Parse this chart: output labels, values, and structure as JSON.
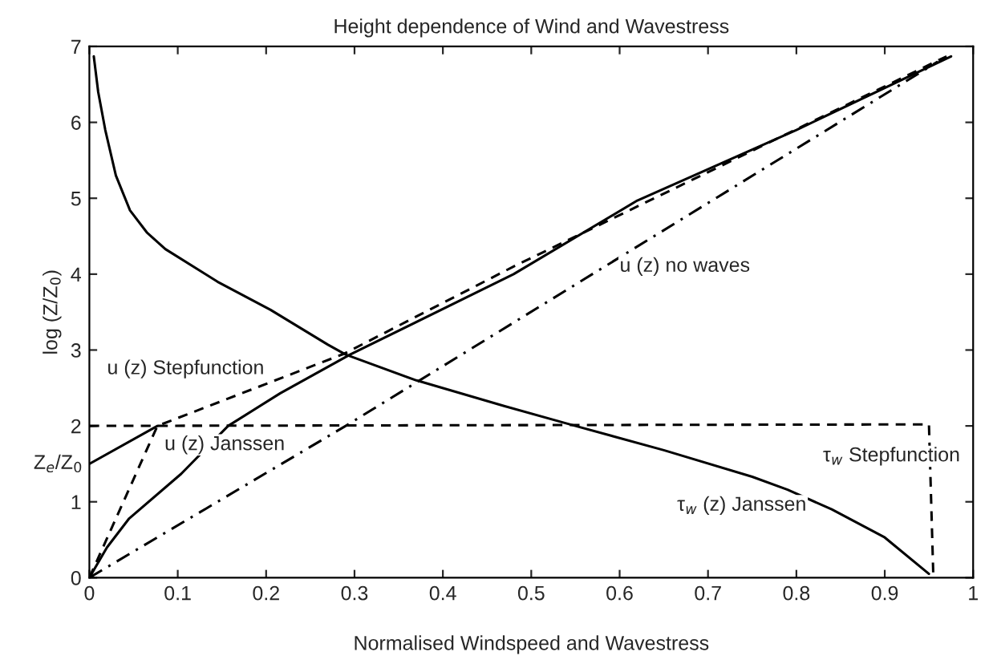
{
  "chart_data": {
    "type": "line",
    "title": "Height dependence of Wind and Wavestress",
    "xlabel": "Normalised Windspeed and Wavestress",
    "ylabel": "log (Z/Z$_{0}$)",
    "xlim": [
      0,
      1
    ],
    "ylim": [
      0,
      7
    ],
    "xticks": [
      0,
      0.1,
      0.2,
      0.3,
      0.4,
      0.5,
      0.6,
      0.7,
      0.8,
      0.9,
      1
    ],
    "yticks": [
      0,
      1,
      2,
      3,
      4,
      5,
      6,
      7
    ],
    "annotations": [
      {
        "text": "Z$_{e}$/Z$_{0}$",
        "x": 0,
        "y": 1.5
      }
    ],
    "grid": false,
    "legend": false,
    "marker": "none",
    "series": [
      {
        "name": "τ$_{w}$ (z) Janssen",
        "color": "#000000",
        "line_style": "solid",
        "x": [
          0.005,
          0.01,
          0.018,
          0.03,
          0.046,
          0.065,
          0.086,
          0.145,
          0.205,
          0.27,
          0.29,
          0.37,
          0.47,
          0.55,
          0.65,
          0.75,
          0.79,
          0.84,
          0.9,
          0.95
        ],
        "values": [
          6.87,
          6.4,
          5.9,
          5.3,
          4.84,
          4.55,
          4.33,
          3.9,
          3.53,
          3.07,
          2.94,
          2.6,
          2.26,
          2.0,
          1.68,
          1.33,
          1.16,
          0.9,
          0.53,
          0.05
        ]
      },
      {
        "name": "τ$_{w}$ Stepfunction",
        "color": "#000000",
        "line_style": "dashed",
        "x": [
          0,
          0.95,
          0.955
        ],
        "values": [
          2,
          2.02,
          0
        ]
      },
      {
        "name": "u (z) no waves",
        "color": "#000000",
        "line_style": "dashdot",
        "x": [
          0,
          0.29,
          0.96
        ],
        "values": [
          0,
          2,
          6.8
        ]
      },
      {
        "name": "u (z) Stepfunction",
        "color": "#000000",
        "line_style": "dashed",
        "x": [
          0,
          0.077,
          0.288,
          0.48,
          0.97
        ],
        "values": [
          0,
          2,
          2.95,
          4.1,
          6.87
        ]
      },
      {
        "color": "#000000",
        "line_style": "solid",
        "x": [
          0,
          0.077
        ],
        "values": [
          1.5,
          2
        ]
      },
      {
        "name": "u (z) Janssen",
        "color": "#000000",
        "line_style": "solid",
        "x": [
          0,
          0.02,
          0.045,
          0.104,
          0.157,
          0.216,
          0.295,
          0.48,
          0.62,
          0.8,
          0.975
        ],
        "values": [
          0,
          0.4,
          0.78,
          1.37,
          2,
          2.43,
          2.94,
          4.0,
          4.97,
          5.9,
          6.87
        ]
      }
    ]
  }
}
